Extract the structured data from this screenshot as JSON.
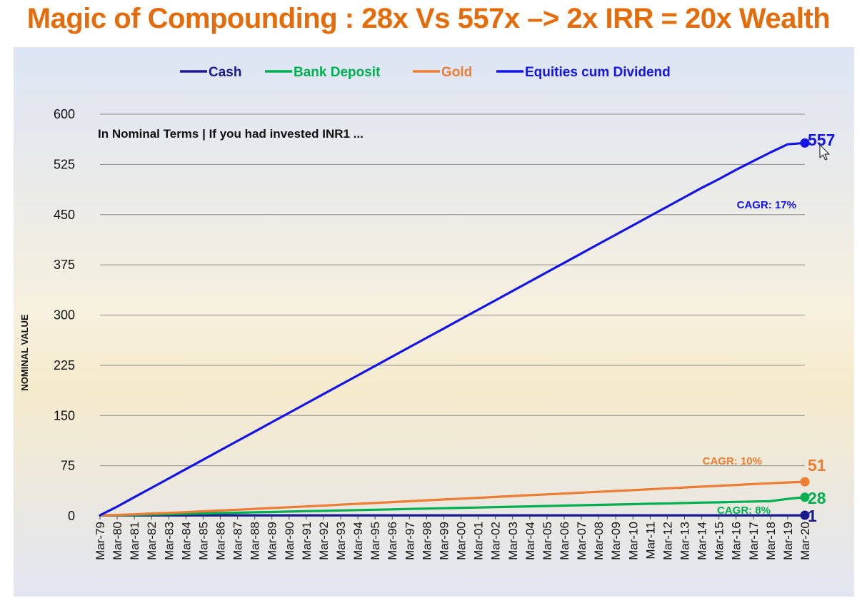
{
  "page": {
    "title": "Magic of Compounding : 28x Vs 557x –> 2x IRR = 20x Wealth"
  },
  "colors": {
    "title": "#E46C0A",
    "cash": "#1A1A8C",
    "bank_deposit": "#00B050",
    "gold": "#ED7D31",
    "equities": "#1414E6"
  },
  "icons": [
    "mouse-pointer-icon"
  ],
  "chart_data": {
    "type": "line",
    "title": "",
    "annotation": "In Nominal Terms | If you had invested INR1 ...",
    "xlabel": "",
    "ylabel": "NOMINAL VALUE",
    "ylim": [
      0,
      600
    ],
    "yticks": [
      0,
      75,
      150,
      225,
      300,
      375,
      450,
      525,
      600
    ],
    "grid": true,
    "legend_position": "top-center",
    "categories": [
      "Mar-79",
      "Mar-80",
      "Mar-81",
      "Mar-82",
      "Mar-83",
      "Mar-84",
      "Mar-85",
      "Mar-86",
      "Mar-87",
      "Mar-88",
      "Mar-89",
      "Mar-90",
      "Mar-91",
      "Mar-92",
      "Mar-93",
      "Mar-94",
      "Mar-95",
      "Mar-96",
      "Mar-97",
      "Mar-98",
      "Mar-99",
      "Mar-00",
      "Mar-01",
      "Mar-02",
      "Mar-03",
      "Mar-04",
      "Mar-05",
      "Mar-06",
      "Mar-07",
      "Mar-08",
      "Mar-09",
      "Mar-10",
      "Mar-11",
      "Mar-12",
      "Mar-13",
      "Mar-14",
      "Mar-15",
      "Mar-16",
      "Mar-17",
      "Mar-18",
      "Mar-19",
      "Mar-20"
    ],
    "series": [
      {
        "name": "Cash",
        "color": "#1A1A8C",
        "values": [
          1,
          1,
          1,
          1,
          1,
          1,
          1,
          1,
          1,
          1,
          1,
          1,
          1,
          1,
          1,
          1,
          1,
          1,
          1,
          1,
          1,
          1,
          1,
          1,
          1,
          1,
          1,
          1,
          1,
          1,
          1,
          1,
          1,
          1,
          1,
          1,
          1,
          1,
          1,
          1,
          1,
          1
        ],
        "end_label": "1",
        "cagr_label": ""
      },
      {
        "name": "Bank Deposit",
        "color": "#00B050",
        "values": [
          1,
          1.1,
          1.6,
          2.1,
          2.6,
          3.2,
          3.7,
          4.3,
          4.8,
          5.4,
          5.9,
          6.5,
          7.1,
          7.6,
          8.2,
          8.7,
          9.3,
          9.8,
          10.4,
          11.0,
          11.5,
          12.1,
          12.6,
          13.2,
          13.7,
          14.3,
          14.8,
          15.4,
          16.0,
          16.5,
          17.1,
          17.6,
          18.2,
          18.7,
          19.3,
          19.9,
          20.4,
          21.0,
          21.5,
          22.1,
          25.5,
          28
        ],
        "end_label": "28",
        "cagr_label": "CAGR: 8%"
      },
      {
        "name": "Gold",
        "color": "#ED7D31",
        "values": [
          1,
          1.5,
          2.5,
          3.6,
          4.6,
          5.7,
          6.9,
          8.1,
          9.3,
          10.5,
          11.8,
          13.0,
          14.2,
          15.5,
          16.8,
          18.1,
          19.4,
          20.7,
          22.0,
          23.3,
          24.6,
          25.8,
          27.1,
          28.4,
          29.7,
          31.0,
          32.2,
          33.5,
          34.8,
          36.0,
          37.3,
          38.6,
          39.9,
          41.2,
          42.5,
          43.8,
          45.0,
          46.3,
          47.6,
          48.8,
          50.0,
          51
        ],
        "end_label": "51",
        "cagr_label": "CAGR: 10%"
      },
      {
        "name": "Equities cum Dividend",
        "color": "#1414E6",
        "values": [
          1,
          14,
          28,
          42,
          56,
          70,
          84,
          98,
          112,
          126,
          140,
          154,
          168,
          182,
          196,
          210,
          224,
          238,
          252,
          266,
          280,
          294,
          308,
          322,
          336,
          350,
          364,
          378,
          392,
          406,
          420,
          434,
          448,
          462,
          476,
          490,
          503,
          517,
          530,
          543,
          555,
          557
        ],
        "end_label": "557",
        "cagr_label": "CAGR: 17%"
      }
    ]
  }
}
